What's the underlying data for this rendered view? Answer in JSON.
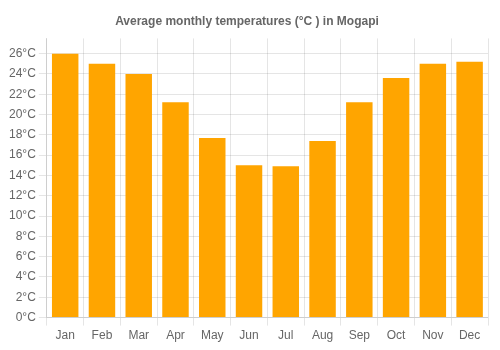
{
  "chart_data": {
    "type": "bar",
    "title": "Average monthly temperatures (°C ) in Mogapi",
    "categories": [
      "Jan",
      "Feb",
      "Mar",
      "Apr",
      "May",
      "Jun",
      "Jul",
      "Aug",
      "Sep",
      "Oct",
      "Nov",
      "Dec"
    ],
    "values": [
      26.0,
      25.0,
      24.0,
      21.2,
      17.7,
      15.0,
      14.9,
      17.4,
      21.2,
      23.6,
      25.0,
      25.2
    ],
    "color": "#FFA500",
    "ylim": [
      0,
      27.5
    ],
    "yticks": [
      {
        "value": 0,
        "label": "0°C"
      },
      {
        "value": 2,
        "label": "2°C"
      },
      {
        "value": 4,
        "label": "4°C"
      },
      {
        "value": 6,
        "label": "6°C"
      },
      {
        "value": 8,
        "label": "8°C"
      },
      {
        "value": 10,
        "label": "10°C"
      },
      {
        "value": 12,
        "label": "12°C"
      },
      {
        "value": 14,
        "label": "14°C"
      },
      {
        "value": 16,
        "label": "16°C"
      },
      {
        "value": 18,
        "label": "18°C"
      },
      {
        "value": 20,
        "label": "20°C"
      },
      {
        "value": 22,
        "label": "22°C"
      },
      {
        "value": 24,
        "label": "24°C"
      },
      {
        "value": 26,
        "label": "26°C"
      }
    ],
    "grid": true
  }
}
